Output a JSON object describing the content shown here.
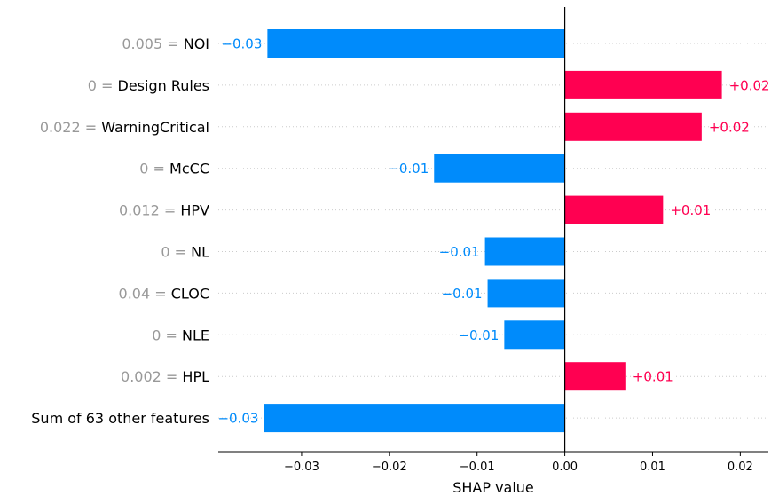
{
  "chart_data": {
    "type": "bar",
    "orientation": "horizontal",
    "xlabel": "SHAP value",
    "xlim": [
      -0.0395,
      0.0232
    ],
    "xticks": [
      -0.03,
      -0.02,
      -0.01,
      0.0,
      0.01,
      0.02
    ],
    "xtick_labels": [
      "−0.03",
      "−0.02",
      "−0.01",
      "0.00",
      "0.01",
      "0.02"
    ],
    "grid": "horizontal dotted",
    "colors": {
      "positive": "#ff0051",
      "negative": "#008bfb",
      "feature_value": "#999999"
    },
    "features": [
      {
        "value": "0.005",
        "name": "NOI",
        "shap": -0.0339,
        "label": "−0.03"
      },
      {
        "value": "0",
        "name": "Design Rules",
        "shap": 0.0179,
        "label": "+0.02"
      },
      {
        "value": "0.022",
        "name": "WarningCritical",
        "shap": 0.0156,
        "label": "+0.02"
      },
      {
        "value": "0",
        "name": "McCC",
        "shap": -0.0149,
        "label": "−0.01"
      },
      {
        "value": "0.012",
        "name": "HPV",
        "shap": 0.0112,
        "label": "+0.01"
      },
      {
        "value": "0",
        "name": "NL",
        "shap": -0.0091,
        "label": "−0.01"
      },
      {
        "value": "0.04",
        "name": "CLOC",
        "shap": -0.0088,
        "label": "−0.01"
      },
      {
        "value": "0",
        "name": "NLE",
        "shap": -0.0069,
        "label": "−0.01"
      },
      {
        "value": "0.002",
        "name": "HPL",
        "shap": 0.0069,
        "label": "+0.01"
      },
      {
        "value": "",
        "name": "Sum of 63 other features",
        "shap": -0.0343,
        "label": "−0.03"
      }
    ]
  }
}
